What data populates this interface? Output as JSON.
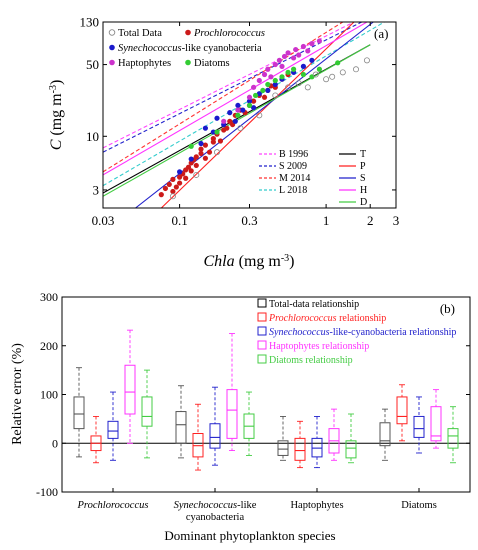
{
  "chart_data": [
    {
      "type": "scatter",
      "panel": "(a)",
      "x_scale": "log",
      "y_scale": "log",
      "xlim": [
        0.03,
        3
      ],
      "ylim": [
        2,
        130
      ],
      "xticks": [
        0.03,
        0.1,
        0.3,
        1,
        2,
        3
      ],
      "xtick_labels": [
        "0.03",
        "0.1",
        "0.3",
        "1",
        "2",
        "3"
      ],
      "yticks": [
        3,
        10,
        50,
        130
      ],
      "ytick_labels": [
        "3",
        "10",
        "50",
        "130"
      ],
      "xlabel_main": "Chla",
      "xlabel_unit": " (mg m",
      "xlabel_exp": "-3",
      "xlabel_close": ")",
      "ylabel_main": "C",
      "ylabel_unit": " (mg m",
      "ylabel_exp": "-3",
      "ylabel_close": ")",
      "legend_top": [
        {
          "label": "Total Data",
          "italic": false,
          "color": "#888888",
          "marker": "open-circle"
        },
        {
          "label": "Prochlorococcus",
          "italic": true,
          "color": "#cc1a1a",
          "marker": "filled-circle"
        },
        {
          "label_italic": "Synechococcus",
          "label_rest": "-like cyanobacteria",
          "color": "#1a1acc",
          "marker": "filled-circle"
        },
        {
          "label": "Haptophytes",
          "italic": false,
          "color": "#cc33cc",
          "marker": "filled-circle"
        },
        {
          "label": "Diatoms",
          "italic": false,
          "color": "#33cc33",
          "marker": "filled-circle"
        }
      ],
      "reference_lines": [
        {
          "name": "B 1996",
          "color": "#ff44ff",
          "style": "dashed",
          "x": [
            0.03,
            1.55
          ],
          "y": [
            7.7,
            130
          ]
        },
        {
          "name": "S 2009",
          "color": "#2222cc",
          "style": "dashed",
          "x": [
            0.03,
            1.75
          ],
          "y": [
            7.0,
            130
          ]
        },
        {
          "name": "M 2014",
          "color": "#ff3333",
          "style": "dashed",
          "x": [
            0.03,
            1.3
          ],
          "y": [
            4.5,
            130
          ]
        },
        {
          "name": "L 2018",
          "color": "#33cccc",
          "style": "dashed",
          "x": [
            0.03,
            2.5
          ],
          "y": [
            3.3,
            130
          ]
        }
      ],
      "fit_lines": [
        {
          "name": "T",
          "color": "#000000",
          "style": "solid",
          "x": [
            0.03,
            2.0
          ],
          "y": [
            2.8,
            78
          ]
        },
        {
          "name": "P",
          "color": "#ff2222",
          "style": "solid",
          "x": [
            0.075,
            1.55
          ],
          "y": [
            2.0,
            130
          ]
        },
        {
          "name": "S",
          "color": "#2222cc",
          "style": "solid",
          "x": [
            0.05,
            2.1
          ],
          "y": [
            2.0,
            130
          ]
        },
        {
          "name": "H",
          "color": "#ff33ff",
          "style": "solid",
          "x": [
            0.03,
            1.9
          ],
          "y": [
            4.2,
            130
          ]
        },
        {
          "name": "D",
          "color": "#44cc44",
          "style": "solid",
          "x": [
            0.03,
            2.0
          ],
          "y": [
            2.6,
            78
          ]
        }
      ],
      "series": [
        {
          "name": "Prochlorococcus",
          "color": "#cc1a1a",
          "x": [
            0.075,
            0.08,
            0.085,
            0.09,
            0.09,
            0.095,
            0.1,
            0.1,
            0.105,
            0.11,
            0.11,
            0.115,
            0.12,
            0.12,
            0.125,
            0.13,
            0.13,
            0.14,
            0.14,
            0.15,
            0.15,
            0.16,
            0.17,
            0.17,
            0.18,
            0.19,
            0.2,
            0.21,
            0.22,
            0.23,
            0.24,
            0.26,
            0.28,
            0.3,
            0.32,
            0.35,
            0.38,
            0.4,
            0.42,
            0.45,
            0.5,
            0.55
          ],
          "y": [
            2.7,
            3.1,
            3.4,
            2.9,
            3.8,
            3.2,
            4.0,
            3.5,
            4.3,
            4.7,
            3.9,
            5.0,
            5.5,
            4.6,
            5.9,
            6.3,
            5.2,
            6.8,
            7.5,
            6.1,
            8.2,
            7.0,
            8.8,
            9.5,
            10.5,
            9.0,
            11.5,
            12.0,
            14.0,
            13.0,
            16.0,
            18.0,
            17.0,
            20.0,
            22.0,
            25.0,
            24.0,
            28.0,
            31.0,
            30.0,
            36.0,
            40.0
          ]
        },
        {
          "name": "Synechococcus-like cyanobacteria",
          "color": "#1a1acc",
          "x": [
            0.1,
            0.12,
            0.14,
            0.15,
            0.17,
            0.18,
            0.2,
            0.22,
            0.24,
            0.25,
            0.27,
            0.3,
            0.32,
            0.35,
            0.4,
            0.45,
            0.5,
            0.6,
            0.7,
            0.8
          ],
          "y": [
            4.5,
            6.0,
            8.5,
            12.0,
            11.0,
            15.0,
            13.0,
            17.0,
            14.0,
            20.0,
            18.0,
            22.0,
            19.0,
            26.0,
            28.0,
            32.0,
            36.0,
            42.0,
            48.0,
            55.0
          ]
        },
        {
          "name": "Haptophytes",
          "color": "#cc33cc",
          "x": [
            0.2,
            0.25,
            0.3,
            0.32,
            0.35,
            0.38,
            0.4,
            0.42,
            0.45,
            0.48,
            0.5,
            0.52,
            0.55,
            0.6,
            0.62,
            0.65,
            0.7,
            0.75,
            0.8,
            0.9
          ],
          "y": [
            14.0,
            18.0,
            24.0,
            30.0,
            35.0,
            40.0,
            45.0,
            38.0,
            50.0,
            55.0,
            48.0,
            60.0,
            65.0,
            58.0,
            70.0,
            62.0,
            75.0,
            68.0,
            80.0,
            85.0
          ]
        },
        {
          "name": "Diatoms",
          "color": "#33cc33",
          "x": [
            0.12,
            0.18,
            0.25,
            0.3,
            0.33,
            0.37,
            0.4,
            0.45,
            0.5,
            0.55,
            0.6,
            0.7,
            0.8,
            0.9,
            1.2
          ],
          "y": [
            8.0,
            11.0,
            16.0,
            20.0,
            25.0,
            28.0,
            32.0,
            35.0,
            38.0,
            42.0,
            45.0,
            40.0,
            38.0,
            45.0,
            52.0
          ]
        },
        {
          "name": "Total Data",
          "color": "#888888",
          "x": [
            0.09,
            0.13,
            0.18,
            0.26,
            0.35,
            0.45,
            0.55,
            0.65,
            0.75,
            0.85,
            1.0,
            1.1,
            1.3,
            1.6,
            1.9
          ],
          "y": [
            2.6,
            4.2,
            7.0,
            12.0,
            16.0,
            25.0,
            30.0,
            33.0,
            30.0,
            40.0,
            36.0,
            38.0,
            42.0,
            45.0,
            55.0
          ]
        }
      ]
    },
    {
      "type": "box",
      "panel": "(b)",
      "ylabel": "Relative error (%)",
      "xlabel": "Dominant phytoplankton species",
      "ylim": [
        -100,
        300
      ],
      "yticks": [
        -100,
        0,
        100,
        200,
        300
      ],
      "categories": [
        {
          "lines": [
            {
              "t": "Prochlorococcus",
              "it": true
            }
          ]
        },
        {
          "lines": [
            {
              "t": "Synechococcus",
              "it": true,
              "rest": "-like"
            },
            {
              "t": "cyanobacteria",
              "it": false
            }
          ]
        },
        {
          "lines": [
            {
              "t": "Haptophytes",
              "it": false
            }
          ]
        },
        {
          "lines": [
            {
              "t": "Diatoms",
              "it": false
            }
          ]
        }
      ],
      "legend": [
        {
          "pre": "Total-data relationship",
          "italic": "",
          "post": "",
          "color": "#000000"
        },
        {
          "pre": "",
          "italic": "Prochlorococcus",
          "post": " relationship",
          "color": "#ff2222"
        },
        {
          "pre": "",
          "italic": "Synechococcus",
          "post": "-like-cyanobacteria relationship",
          "color": "#2222cc"
        },
        {
          "pre": "Haptophytes relationship",
          "italic": "",
          "post": "",
          "color": "#ff33ff"
        },
        {
          "pre": "Diatoms relationship",
          "italic": "",
          "post": "",
          "color": "#44cc44"
        }
      ],
      "series": [
        {
          "name": "Total-data relationship",
          "color": "#555555",
          "boxes": [
            {
              "whislo": -28,
              "q1": 30,
              "med": 60,
              "q3": 95,
              "whishi": 155
            },
            {
              "whislo": -30,
              "q1": 0,
              "med": 38,
              "q3": 65,
              "whishi": 118
            },
            {
              "whislo": -35,
              "q1": -25,
              "med": -12,
              "q3": 5,
              "whishi": 55
            },
            {
              "whislo": -35,
              "q1": -5,
              "med": 5,
              "q3": 42,
              "whishi": 70
            }
          ]
        },
        {
          "name": "Prochlorococcus relationship",
          "color": "#ff2222",
          "boxes": [
            {
              "whislo": -40,
              "q1": -15,
              "med": 0,
              "q3": 15,
              "whishi": 55
            },
            {
              "whislo": -55,
              "q1": -28,
              "med": -5,
              "q3": 20,
              "whishi": 80
            },
            {
              "whislo": -50,
              "q1": -35,
              "med": -15,
              "q3": 10,
              "whishi": 45
            },
            {
              "whislo": 5,
              "q1": 40,
              "med": 55,
              "q3": 95,
              "whishi": 120
            }
          ]
        },
        {
          "name": "Synechococcus-like-cyanobacteria relationship",
          "color": "#2222cc",
          "boxes": [
            {
              "whislo": -35,
              "q1": 10,
              "med": 25,
              "q3": 45,
              "whishi": 105
            },
            {
              "whislo": -45,
              "q1": -10,
              "med": 12,
              "q3": 40,
              "whishi": 115
            },
            {
              "whislo": -50,
              "q1": -28,
              "med": -10,
              "q3": 10,
              "whishi": 55
            },
            {
              "whislo": -20,
              "q1": 12,
              "med": 30,
              "q3": 55,
              "whishi": 95
            }
          ]
        },
        {
          "name": "Haptophytes relationship",
          "color": "#ff33ff",
          "boxes": [
            {
              "whislo": 0,
              "q1": 60,
              "med": 105,
              "q3": 160,
              "whishi": 232
            },
            {
              "whislo": -15,
              "q1": 10,
              "med": 68,
              "q3": 110,
              "whishi": 225
            },
            {
              "whislo": -35,
              "q1": -20,
              "med": 5,
              "q3": 30,
              "whishi": 70
            },
            {
              "whislo": -10,
              "q1": 5,
              "med": 15,
              "q3": 75,
              "whishi": 110
            }
          ]
        },
        {
          "name": "Diatoms relationship",
          "color": "#44cc44",
          "boxes": [
            {
              "whislo": -30,
              "q1": 35,
              "med": 55,
              "q3": 95,
              "whishi": 150
            },
            {
              "whislo": -25,
              "q1": 10,
              "med": 35,
              "q3": 60,
              "whishi": 105
            },
            {
              "whislo": -40,
              "q1": -30,
              "med": -10,
              "q3": 5,
              "whishi": 60
            },
            {
              "whislo": -40,
              "q1": -10,
              "med": 15,
              "q3": 30,
              "whishi": 75
            }
          ]
        }
      ]
    }
  ]
}
